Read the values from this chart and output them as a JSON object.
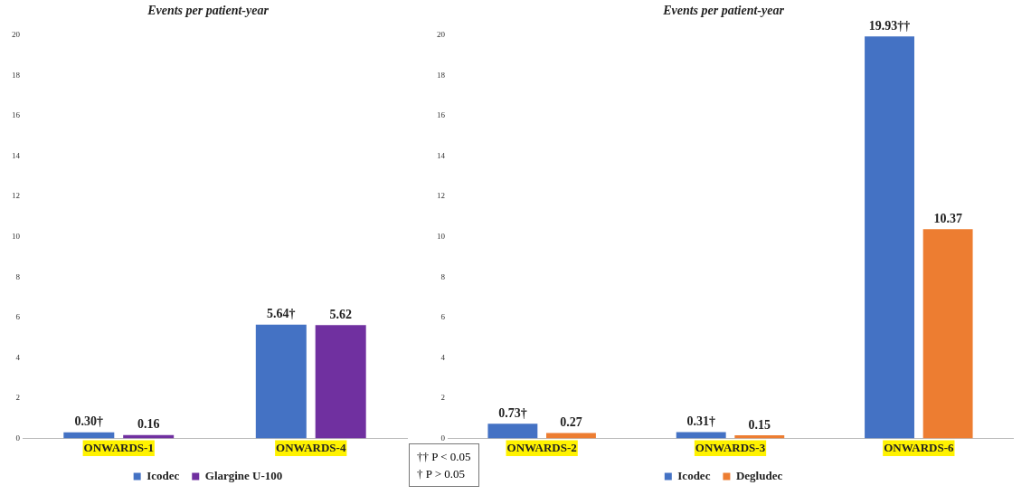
{
  "chart_data": [
    {
      "type": "bar",
      "title": "Events per patient-year",
      "categories": [
        "ONWARDS-1",
        "ONWARDS-4"
      ],
      "series": [
        {
          "name": "Icodec",
          "color": "#4472c4",
          "values": [
            0.3,
            5.64
          ],
          "value_labels": [
            "0.30†",
            "5.64†"
          ]
        },
        {
          "name": "Glargine U-100",
          "color": "#7030a0",
          "values": [
            0.16,
            5.62
          ],
          "value_labels": [
            "0.16",
            "5.62"
          ]
        }
      ],
      "ylim": [
        0,
        20
      ],
      "yticks": [
        0,
        2,
        4,
        6,
        8,
        10,
        12,
        14,
        16,
        18,
        20
      ],
      "grid": false,
      "legend": "bottom",
      "annotations": [
        "†† P < 0.05",
        "† P > 0.05"
      ]
    },
    {
      "type": "bar",
      "title": "Events per patient-year",
      "categories": [
        "ONWARDS-2",
        "ONWARDS-3",
        "ONWARDS-6"
      ],
      "series": [
        {
          "name": "Icodec",
          "color": "#4472c4",
          "values": [
            0.73,
            0.31,
            19.93
          ],
          "value_labels": [
            "0.73†",
            "0.31†",
            "19.93††"
          ]
        },
        {
          "name": "Degludec",
          "color": "#ed7d31",
          "values": [
            0.27,
            0.15,
            10.37
          ],
          "value_labels": [
            "0.27",
            "0.15",
            "10.37"
          ]
        }
      ],
      "ylim": [
        0,
        20
      ],
      "yticks": [
        0,
        2,
        4,
        6,
        8,
        10,
        12,
        14,
        16,
        18,
        20
      ],
      "grid": false,
      "legend": "bottom"
    }
  ]
}
